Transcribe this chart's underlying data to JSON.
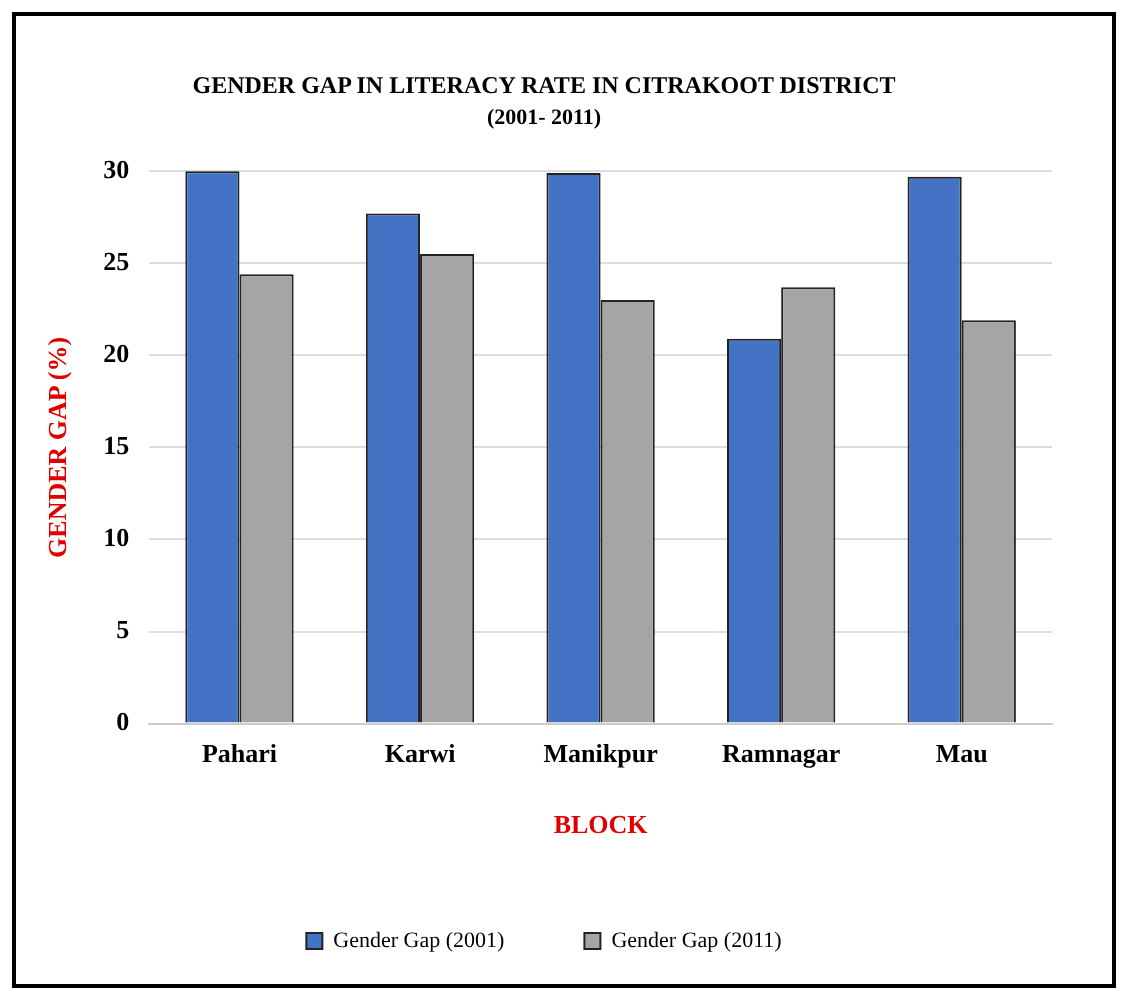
{
  "chart_data": {
    "type": "bar",
    "title": "GENDER GAP IN LITERACY RATE IN CITRAKOOT DISTRICT",
    "subtitle": "(2001- 2011)",
    "xlabel": "BLOCK",
    "ylabel": "GENDER GAP (%)",
    "categories": [
      "Pahari",
      "Karwi",
      "Manikpur",
      "Ramnagar",
      "Mau"
    ],
    "series": [
      {
        "name": "Gender Gap (2001)",
        "color": "#4472c4",
        "values": [
          30,
          27.7,
          29.9,
          20.9,
          29.7
        ]
      },
      {
        "name": "Gender Gap (2011)",
        "color": "#a5a5a5",
        "values": [
          24.4,
          25.5,
          23.0,
          23.7,
          21.9
        ]
      }
    ],
    "ylim": [
      0,
      30
    ],
    "yticks": [
      0,
      5,
      10,
      15,
      20,
      25,
      30
    ],
    "grid": "y",
    "legend": "bottom"
  }
}
